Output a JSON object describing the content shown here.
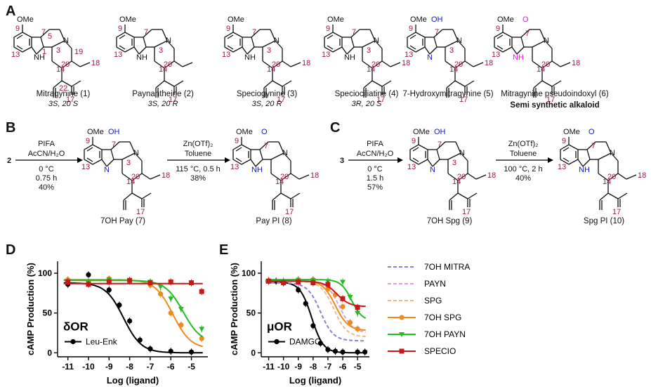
{
  "panel_A": {
    "letter": "A",
    "compounds": [
      {
        "name": "Mitragynine (1)",
        "stereo": "3S, 20 S"
      },
      {
        "name": "Paynantheine (2)",
        "stereo": "3S, 20 R"
      },
      {
        "name": "Speciogynine (3)",
        "stereo": "3S, 20 R"
      },
      {
        "name": "Speciociliatine (4)",
        "stereo": "3R, 20 S"
      },
      {
        "name": "7-Hydroxymitragynine (5)",
        "stereo": ""
      },
      {
        "name": "Mitragynine pseudoindoxyl (6)",
        "stereo": ""
      }
    ],
    "note": "Semi synthetic alkaloid"
  },
  "panel_B": {
    "letter": "B",
    "start": "2",
    "step1": [
      "PIFA",
      "AcCN/H₂O",
      "0 °C",
      "0.75 h",
      "40%"
    ],
    "intermediate": "7OH Pay (7)",
    "step2": [
      "Zn(OTf)₂",
      "Toluene",
      "115 °C, 0.5 h",
      "38%"
    ],
    "product": "Pay PI (8)"
  },
  "panel_C": {
    "letter": "C",
    "start": "3",
    "step1": [
      "PIFA",
      "AcCN/H₂O",
      "0 °C",
      "1.5 h",
      "57%"
    ],
    "intermediate": "7OH Spg (9)",
    "step2": [
      "Zn(OTf)₂",
      "Toluene",
      "100 °C, 2 h",
      "40%"
    ],
    "product": "Spg PI (10)"
  },
  "chem_labels": {
    "ome": "OMe",
    "oh": "OH",
    "nh": "NH",
    "n": "N",
    "h": "H",
    "o": "O"
  },
  "colors": {
    "atom_numbers": "#a0144e",
    "oxidized": "#1515cc",
    "pseudoindoxyl": "#e020e0",
    "black": "#000000",
    "purple": "#8a7fd6",
    "pink": "#d9a0e8",
    "peach": "#f4b788",
    "orange": "#f08a1e",
    "green": "#22bb22",
    "red": "#c41a1a"
  },
  "chart_data": [
    {
      "panel": "D",
      "type": "line",
      "receptor": "δOR",
      "xlabel": "Log (ligand)",
      "ylabel": "cAMP Production (%)",
      "xlim": [
        -11.5,
        -4.2
      ],
      "ylim": [
        -5,
        115
      ],
      "xticks": [
        -11,
        -10,
        -9,
        -8,
        -7,
        -6,
        -5
      ],
      "yticks": [
        0,
        50,
        100
      ],
      "legend": "lower-left",
      "series": [
        {
          "name": "Leu-Enk",
          "color": "#000000",
          "marker": "circle",
          "dashed": false,
          "top": 88,
          "bottom": 0,
          "logEC50": -8.3,
          "hill": 1.0,
          "x": [
            -11,
            -10,
            -9,
            -8.5,
            -8,
            -7.5,
            -7,
            -6,
            -5
          ],
          "y": [
            86,
            98,
            79,
            60,
            40,
            16,
            5,
            2,
            1
          ]
        },
        {
          "name": "7OH SPG",
          "color": "#f08a1e",
          "marker": "circle",
          "dashed": false,
          "top": 92,
          "bottom": 5,
          "logEC50": -5.9,
          "hill": 1.0,
          "x": [
            -11,
            -10,
            -9,
            -8,
            -7,
            -6.5,
            -6,
            -5.5,
            -4.5
          ],
          "y": [
            92,
            90,
            93,
            91,
            85,
            74,
            50,
            35,
            18
          ]
        },
        {
          "name": "7OH PAYN",
          "color": "#22bb22",
          "marker": "triangle",
          "dashed": false,
          "top": 91,
          "bottom": 12,
          "logEC50": -5.4,
          "hill": 1.0,
          "x": [
            -11,
            -10,
            -9,
            -8,
            -7,
            -6.5,
            -6,
            -5.5,
            -4.5
          ],
          "y": [
            90,
            89,
            92,
            90,
            89,
            83,
            68,
            55,
            30
          ]
        },
        {
          "name": "SPECIO",
          "color": "#c41a1a",
          "marker": "square",
          "dashed": false,
          "top": 87,
          "bottom": 87,
          "logEC50": -6,
          "hill": 1.0,
          "x": [
            -11,
            -10,
            -9,
            -8,
            -7,
            -6,
            -5,
            -4.5
          ],
          "y": [
            89,
            86,
            89,
            91,
            88,
            89,
            88,
            77
          ]
        }
      ]
    },
    {
      "panel": "E",
      "type": "line",
      "receptor": "μOR",
      "xlabel": "Log (ligand)",
      "ylabel": "cAMP Production (%)",
      "xlim": [
        -11.5,
        -4.2
      ],
      "ylim": [
        -5,
        115
      ],
      "xticks": [
        -11,
        -10,
        -9,
        -8,
        -7,
        -6,
        -5
      ],
      "yticks": [
        0,
        50,
        100
      ],
      "legend": "lower-left",
      "series": [
        {
          "name": "DAMGO",
          "color": "#000000",
          "marker": "circle",
          "dashed": false,
          "top": 89,
          "bottom": 0,
          "logEC50": -8.1,
          "hill": 1.1,
          "x": [
            -11,
            -10.5,
            -10,
            -9,
            -8.5,
            -8,
            -7.5,
            -7,
            -6.5,
            -6,
            -5,
            -4.5
          ],
          "y": [
            90,
            90,
            88,
            79,
            62,
            34,
            12,
            4,
            2,
            1,
            1,
            1
          ]
        },
        {
          "name": "7OH MITRA",
          "color": "#8a7fd6",
          "marker": "none",
          "dashed": true,
          "top": 88,
          "bottom": 15,
          "logEC50": -7.5,
          "hill": 1.0
        },
        {
          "name": "PAYN",
          "color": "#d9a0e8",
          "marker": "none",
          "dashed": true,
          "top": 90,
          "bottom": 25,
          "logEC50": -6.2,
          "hill": 1.0
        },
        {
          "name": "SPG",
          "color": "#f4b788",
          "marker": "none",
          "dashed": true,
          "top": 90,
          "bottom": 20,
          "logEC50": -6.6,
          "hill": 1.0
        },
        {
          "name": "7OH SPG",
          "color": "#f08a1e",
          "marker": "circle",
          "dashed": false,
          "top": 91,
          "bottom": 28,
          "logEC50": -6.5,
          "hill": 1.0,
          "x": [
            -11,
            -10,
            -9,
            -8,
            -7,
            -6.5,
            -6,
            -5.5,
            -5
          ],
          "y": [
            91,
            90,
            92,
            92,
            80,
            73,
            58,
            38,
            30
          ]
        },
        {
          "name": "7OH PAYN",
          "color": "#22bb22",
          "marker": "triangle",
          "dashed": false,
          "top": 92,
          "bottom": 40,
          "logEC50": -5.4,
          "hill": 1.2,
          "x": [
            -11,
            -10,
            -9,
            -8,
            -7,
            -6,
            -5.5,
            -5
          ],
          "y": [
            90,
            90,
            91,
            91,
            90,
            89,
            70,
            50
          ]
        },
        {
          "name": "SPECIO",
          "color": "#c41a1a",
          "marker": "square",
          "dashed": false,
          "top": 90,
          "bottom": 58,
          "logEC50": -6.4,
          "hill": 1.0,
          "x": [
            -11,
            -10,
            -9,
            -8,
            -7,
            -6,
            -5
          ],
          "y": [
            90,
            88,
            89,
            88,
            86,
            68,
            57
          ]
        }
      ]
    }
  ],
  "legend_panel": {
    "items": [
      {
        "name": "7OH MITRA",
        "color": "#8a7fd6",
        "dashed": true,
        "marker": "none"
      },
      {
        "name": "PAYN",
        "color": "#d9a0e8",
        "dashed": true,
        "marker": "none"
      },
      {
        "name": "SPG",
        "color": "#f4b788",
        "dashed": true,
        "marker": "none"
      },
      {
        "name": "7OH SPG",
        "color": "#f08a1e",
        "dashed": false,
        "marker": "circle"
      },
      {
        "name": "7OH PAYN",
        "color": "#22bb22",
        "dashed": false,
        "marker": "triangle"
      },
      {
        "name": "SPECIO",
        "color": "#c41a1a",
        "dashed": false,
        "marker": "square"
      }
    ]
  }
}
